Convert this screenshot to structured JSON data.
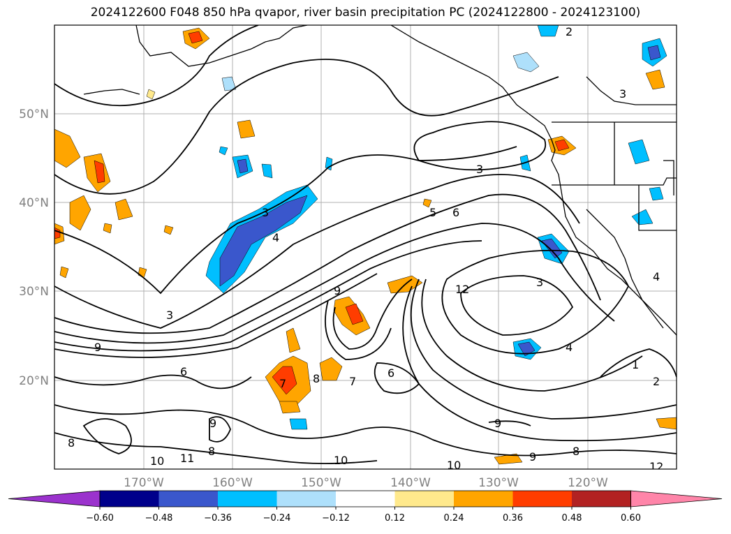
{
  "title": "2024122600 F048 850 hPa qvapor, river basin precipitation PC (2024122800 - 2024123100)",
  "longitude_labels": [
    "170°W",
    "160°W",
    "150°W",
    "140°W",
    "130°W",
    "120°W"
  ],
  "latitude_labels": [
    "50°N",
    "40°N",
    "30°N",
    "20°N"
  ],
  "colorbar": {
    "colors": [
      "#9b32cd",
      "#00008b",
      "#3a57cc",
      "#00bfff",
      "#aee0fb",
      "#ffffff",
      "#ffe98c",
      "#ffa500",
      "#ff3d00",
      "#b22222",
      "#ff85a9"
    ],
    "tick_labels": [
      "−0.60",
      "−0.48",
      "−0.36",
      "−0.24",
      "−0.12",
      "0.12",
      "0.24",
      "0.36",
      "0.48",
      "0.60"
    ]
  },
  "contour_labels": [
    "2",
    "3",
    "3",
    "3",
    "3",
    "4",
    "4",
    "5",
    "6",
    "3",
    "9",
    "9",
    "10",
    "10",
    "11",
    "12",
    "8",
    "8",
    "9",
    "9",
    "8",
    "10",
    "12",
    "2",
    "4",
    "1",
    "7",
    "6",
    "8",
    "9",
    "7",
    "6"
  ]
}
